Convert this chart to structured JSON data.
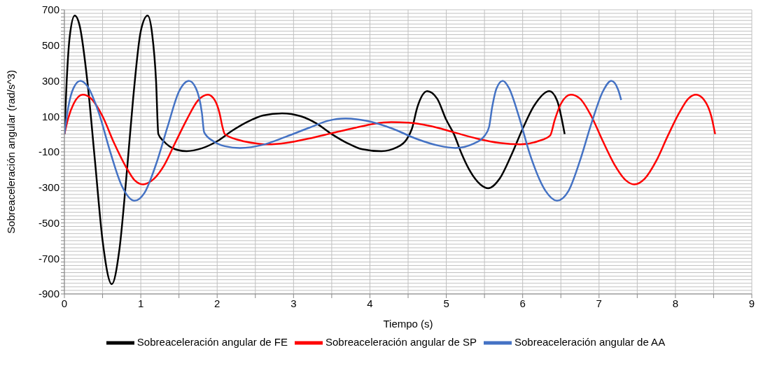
{
  "chart_data": {
    "type": "line",
    "xlabel": "Tiempo (s)",
    "ylabel": "Sobreaceleración angular (rad/s^3)",
    "xlim": [
      0,
      9
    ],
    "ylim": [
      -900,
      700
    ],
    "xticks": [
      0,
      {
        "value": 0.5,
        "label": null
      },
      1,
      {
        "value": 1.5,
        "label": null
      },
      2,
      {
        "value": 2.5,
        "label": null
      },
      3,
      {
        "value": 3.5,
        "label": null
      },
      4,
      {
        "value": 4.5,
        "label": null
      },
      5,
      {
        "value": 5.5,
        "label": null
      },
      6,
      {
        "value": 6.5,
        "label": null
      },
      7,
      {
        "value": 7.5,
        "label": null
      },
      8,
      {
        "value": 8.5,
        "label": null
      },
      9
    ],
    "yticks": [
      -900,
      {
        "value": -880,
        "label": null
      },
      {
        "value": -860,
        "label": null
      },
      {
        "value": -840,
        "label": null
      },
      {
        "value": -820,
        "label": null
      },
      {
        "value": -800,
        "label": null
      },
      {
        "value": -780,
        "label": null
      },
      {
        "value": -760,
        "label": null
      },
      {
        "value": -740,
        "label": null
      },
      {
        "value": -720,
        "label": null
      },
      -700,
      {
        "value": -680,
        "label": null
      },
      {
        "value": -660,
        "label": null
      },
      {
        "value": -640,
        "label": null
      },
      {
        "value": -620,
        "label": null
      },
      {
        "value": -600,
        "label": null
      },
      {
        "value": -580,
        "label": null
      },
      {
        "value": -560,
        "label": null
      },
      {
        "value": -540,
        "label": null
      },
      {
        "value": -520,
        "label": null
      },
      -500,
      {
        "value": -480,
        "label": null
      },
      {
        "value": -460,
        "label": null
      },
      {
        "value": -440,
        "label": null
      },
      {
        "value": -420,
        "label": null
      },
      {
        "value": -400,
        "label": null
      },
      {
        "value": -380,
        "label": null
      },
      {
        "value": -360,
        "label": null
      },
      {
        "value": -340,
        "label": null
      },
      {
        "value": -320,
        "label": null
      },
      -300,
      {
        "value": -280,
        "label": null
      },
      {
        "value": -260,
        "label": null
      },
      {
        "value": -240,
        "label": null
      },
      {
        "value": -220,
        "label": null
      },
      {
        "value": -200,
        "label": null
      },
      {
        "value": -180,
        "label": null
      },
      {
        "value": -160,
        "label": null
      },
      {
        "value": -140,
        "label": null
      },
      {
        "value": -120,
        "label": null
      },
      -100,
      {
        "value": -80,
        "label": null
      },
      {
        "value": -60,
        "label": null
      },
      {
        "value": -40,
        "label": null
      },
      {
        "value": -20,
        "label": null
      },
      {
        "value": 0,
        "label": null
      },
      {
        "value": 20,
        "label": null
      },
      {
        "value": 40,
        "label": null
      },
      {
        "value": 60,
        "label": null
      },
      {
        "value": 80,
        "label": null
      },
      100,
      {
        "value": 120,
        "label": null
      },
      {
        "value": 140,
        "label": null
      },
      {
        "value": 160,
        "label": null
      },
      {
        "value": 180,
        "label": null
      },
      {
        "value": 200,
        "label": null
      },
      {
        "value": 220,
        "label": null
      },
      {
        "value": 240,
        "label": null
      },
      {
        "value": 260,
        "label": null
      },
      {
        "value": 280,
        "label": null
      },
      300,
      {
        "value": 320,
        "label": null
      },
      {
        "value": 340,
        "label": null
      },
      {
        "value": 360,
        "label": null
      },
      {
        "value": 380,
        "label": null
      },
      {
        "value": 400,
        "label": null
      },
      {
        "value": 420,
        "label": null
      },
      {
        "value": 440,
        "label": null
      },
      {
        "value": 460,
        "label": null
      },
      {
        "value": 480,
        "label": null
      },
      500,
      {
        "value": 520,
        "label": null
      },
      {
        "value": 540,
        "label": null
      },
      {
        "value": 560,
        "label": null
      },
      {
        "value": 580,
        "label": null
      },
      {
        "value": 600,
        "label": null
      },
      {
        "value": 620,
        "label": null
      },
      {
        "value": 640,
        "label": null
      },
      {
        "value": 660,
        "label": null
      },
      {
        "value": 680,
        "label": null
      },
      700
    ],
    "grid": true,
    "legend": "bottom",
    "marker": "none",
    "line_style": "solid",
    "series": [
      {
        "name": "Sobreaceleración angular de FE",
        "color": "#000000",
        "x": [
          0,
          0.03,
          0.07,
          0.135,
          0.2,
          0.3,
          0.4,
          0.5,
          0.62,
          0.72,
          0.82,
          0.9,
          1.0,
          1.09,
          1.15,
          1.2,
          1.23,
          1.3,
          1.45,
          1.6,
          1.8,
          2.0,
          2.2,
          2.4,
          2.6,
          2.85,
          3.1,
          3.3,
          3.5,
          3.7,
          3.9,
          4.15,
          4.35,
          4.48,
          4.55,
          4.62,
          4.75,
          4.88,
          5.0,
          5.1,
          5.2,
          5.3,
          5.45,
          5.55,
          5.7,
          5.85,
          6.0,
          6.15,
          6.35,
          6.45,
          6.55
        ],
        "values": [
          0,
          300,
          550,
          667,
          610,
          300,
          -150,
          -600,
          -845,
          -650,
          -200,
          200,
          580,
          667,
          560,
          300,
          0,
          -40,
          -85,
          -96,
          -80,
          -40,
          20,
          70,
          105,
          117,
          100,
          60,
          0,
          -50,
          -85,
          -96,
          -75,
          -30,
          30,
          150,
          242,
          200,
          80,
          0,
          -110,
          -200,
          -285,
          -305,
          -250,
          -120,
          30,
          160,
          242,
          190,
          0
        ]
      },
      {
        "name": "Sobreaceleración angular de SP",
        "color": "#ff0000",
        "x": [
          0,
          0.05,
          0.12,
          0.24,
          0.35,
          0.5,
          0.65,
          0.8,
          0.92,
          1.03,
          1.15,
          1.3,
          1.45,
          1.6,
          1.75,
          1.88,
          1.97,
          2.03,
          2.07,
          2.1,
          2.3,
          2.5,
          2.66,
          2.9,
          3.2,
          3.5,
          3.8,
          4.05,
          4.28,
          4.5,
          4.8,
          5.1,
          5.4,
          5.7,
          5.97,
          6.2,
          6.36,
          6.42,
          6.5,
          6.63,
          6.75,
          6.9,
          7.05,
          7.2,
          7.35,
          7.46,
          7.6,
          7.75,
          7.9,
          8.05,
          8.17,
          8.27,
          8.38,
          8.47,
          8.52
        ],
        "values": [
          0,
          90,
          170,
          222,
          200,
          100,
          -50,
          -180,
          -260,
          -283,
          -260,
          -180,
          -50,
          80,
          190,
          222,
          190,
          120,
          40,
          0,
          -35,
          -52,
          -58,
          -50,
          -25,
          5,
          35,
          58,
          67,
          65,
          45,
          10,
          -25,
          -50,
          -58,
          -40,
          -8,
          80,
          170,
          222,
          200,
          100,
          -40,
          -170,
          -260,
          -283,
          -250,
          -150,
          -10,
          120,
          200,
          222,
          190,
          100,
          0
        ]
      },
      {
        "name": "Sobreaceleración angular de AA",
        "color": "#4472c4",
        "x": [
          0,
          0.05,
          0.12,
          0.21,
          0.3,
          0.45,
          0.6,
          0.75,
          0.92,
          1.05,
          1.2,
          1.35,
          1.5,
          1.63,
          1.72,
          1.8,
          1.83,
          1.95,
          2.1,
          2.3,
          2.6,
          2.9,
          3.2,
          3.45,
          3.68,
          3.95,
          4.3,
          4.6,
          4.9,
          5.12,
          5.35,
          5.5,
          5.56,
          5.6,
          5.66,
          5.74,
          5.82,
          5.95,
          6.1,
          6.3,
          6.45,
          6.6,
          6.75,
          6.9,
          7.05,
          7.16,
          7.25,
          7.29
        ],
        "values": [
          0,
          150,
          260,
          300,
          270,
          120,
          -100,
          -290,
          -375,
          -330,
          -170,
          40,
          240,
          300,
          260,
          120,
          10,
          -40,
          -68,
          -78,
          -60,
          -15,
          35,
          75,
          88,
          75,
          30,
          -25,
          -65,
          -78,
          -55,
          -10,
          40,
          150,
          260,
          300,
          260,
          100,
          -120,
          -320,
          -375,
          -320,
          -150,
          60,
          240,
          300,
          250,
          192
        ]
      }
    ]
  }
}
